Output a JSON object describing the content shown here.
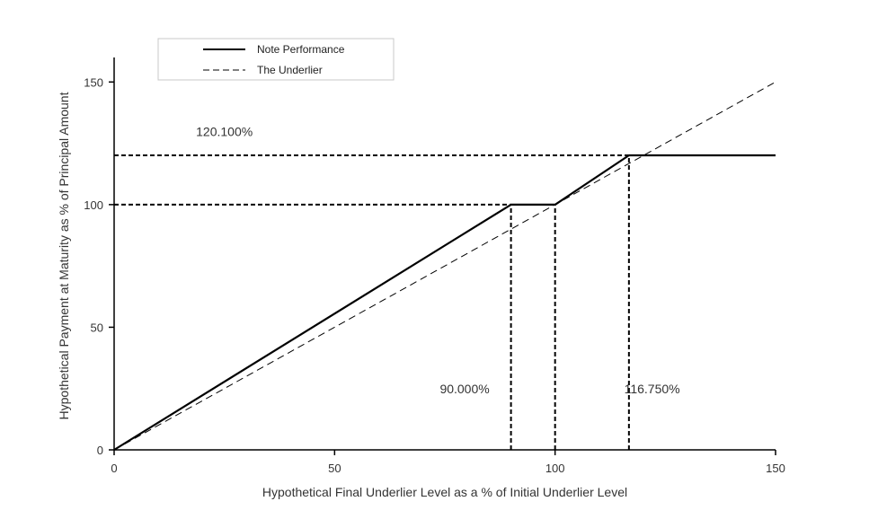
{
  "chart_data": {
    "type": "line",
    "title": "",
    "xlabel": "Hypothetical Final Underlier Level as a % of Initial Underlier Level",
    "ylabel": "Hypothetical Payment at Maturity as % of Principal Amount",
    "xlim": [
      0,
      150
    ],
    "ylim": [
      0,
      160
    ],
    "xticks": [
      0,
      50,
      100,
      150
    ],
    "yticks": [
      0,
      50,
      100,
      150
    ],
    "grid": false,
    "legend_position": "top-left",
    "series": [
      {
        "name": "Note Performance",
        "style": "solid",
        "color": "#000000",
        "x": [
          0,
          90,
          100,
          116.75,
          150
        ],
        "y": [
          0,
          100,
          100,
          120.1,
          120.1
        ]
      },
      {
        "name": "The Underlier",
        "style": "dashed",
        "color": "#000000",
        "x": [
          0,
          150
        ],
        "y": [
          0,
          150
        ]
      }
    ],
    "reference_lines": [
      {
        "orientation": "horizontal",
        "y": 120.1,
        "x_from": 0,
        "x_to": 116.75
      },
      {
        "orientation": "horizontal",
        "y": 100,
        "x_from": 0,
        "x_to": 90
      },
      {
        "orientation": "vertical",
        "x": 90,
        "y_from": 0,
        "y_to": 100
      },
      {
        "orientation": "vertical",
        "x": 100,
        "y_from": 0,
        "y_to": 100
      },
      {
        "orientation": "vertical",
        "x": 116.75,
        "y_from": 0,
        "y_to": 120.1
      }
    ],
    "annotations": [
      {
        "text": "120.100%",
        "x": 25,
        "y": 128
      },
      {
        "text": "90.000%",
        "x": 79.5,
        "y": 23
      },
      {
        "text": "116.750%",
        "x": 122,
        "y": 23
      }
    ]
  }
}
